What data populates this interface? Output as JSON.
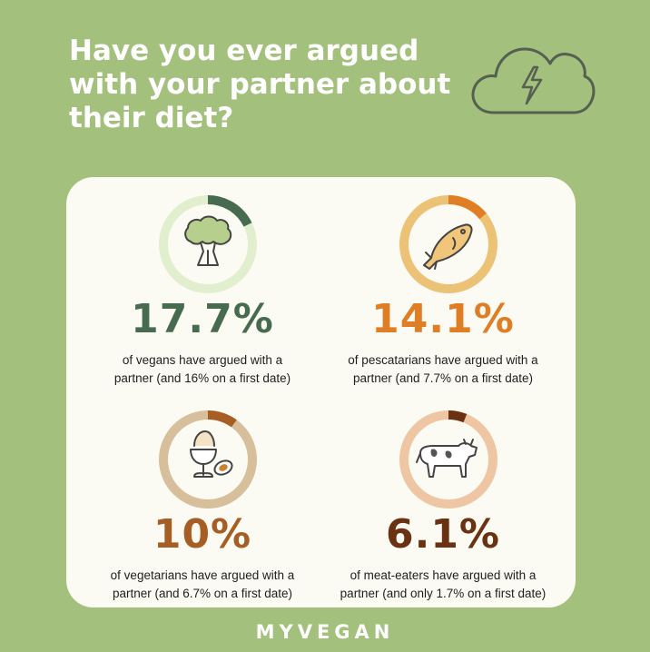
{
  "header": {
    "title_lines": [
      "Have you ever argued",
      "with your partner about",
      "their diet?"
    ]
  },
  "chart_data": {
    "type": "donut",
    "items": [
      {
        "group": "vegans",
        "value": 17.7,
        "value_label": "17.7%",
        "first_date_value": 16,
        "desc_lines": [
          "of vegans have argued with a",
          "partner (and 16% on a first date)"
        ],
        "color": "#476b4f",
        "track_color": "#e1efcf",
        "icon": "broccoli-icon"
      },
      {
        "group": "pescatarians",
        "value": 14.1,
        "value_label": "14.1%",
        "first_date_value": 7.7,
        "desc_lines": [
          "of pescatarians have argued with a",
          "partner (and 7.7% on a first date)"
        ],
        "color": "#e07e26",
        "track_color": "#ecc277",
        "icon": "fish-icon"
      },
      {
        "group": "vegetarians",
        "value": 10,
        "value_label": "10%",
        "first_date_value": 6.7,
        "desc_lines": [
          "of vegetarians have argued with a",
          "partner (and 6.7% on a first date)"
        ],
        "color": "#a65e24",
        "track_color": "#d6bf9a",
        "icon": "egg-icon"
      },
      {
        "group": "meat-eaters",
        "value": 6.1,
        "value_label": "6.1%",
        "first_date_value": 1.7,
        "desc_lines": [
          "of meat-eaters have argued with a",
          "partner (and only 1.7% on a first date)"
        ],
        "color": "#6a3212",
        "track_color": "#eec6a3",
        "icon": "cow-icon"
      }
    ]
  },
  "brand": {
    "name": "MYVEGAN"
  },
  "icons": {
    "header_icon": "cloud-lightning-icon"
  }
}
